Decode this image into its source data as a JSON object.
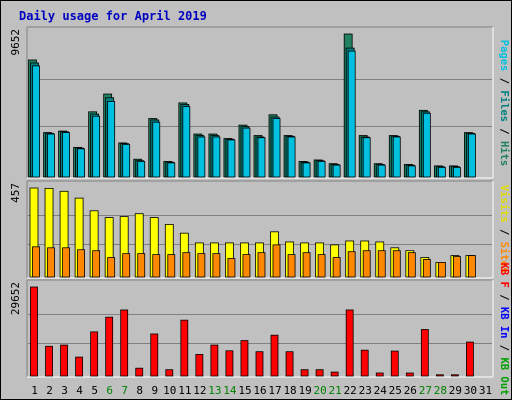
{
  "chart_data": {
    "type": "bar",
    "title": "Daily usage for April 2019",
    "colors": {
      "background": "#c0c0c0",
      "title": "#0000c0",
      "pages": "#00c0e0",
      "files": "#008080",
      "hits": "#208060",
      "visits": "#ffff00",
      "sites": "#ff8800",
      "kb_f": "#ff0000",
      "kb_in": "#0000ff",
      "kb_out": "#00a000",
      "weekend_day": "#008000",
      "weekday": "#000000"
    },
    "days": [
      "1",
      "2",
      "3",
      "4",
      "5",
      "6",
      "7",
      "8",
      "9",
      "10",
      "11",
      "12",
      "13",
      "14",
      "15",
      "16",
      "17",
      "18",
      "19",
      "20",
      "21",
      "22",
      "23",
      "24",
      "25",
      "26",
      "27",
      "28",
      "29",
      "30",
      "31"
    ],
    "weekend_days": [
      "6",
      "7",
      "13",
      "14",
      "20",
      "21",
      "27",
      "28"
    ],
    "top_panel": {
      "ymax_label": "9652",
      "ymax": 9652,
      "legend": [
        "Pages",
        "/",
        "Files",
        "/",
        "Hits"
      ],
      "legend_colors": [
        "#00c0e0",
        "#000000",
        "#008080",
        "#000000",
        "#208060"
      ],
      "series": [
        {
          "name": "Hits",
          "values": [
            7900,
            3000,
            3100,
            2000,
            4400,
            5600,
            2300,
            1200,
            3950,
            1050,
            5000,
            2900,
            2900,
            2600,
            3500,
            2800,
            4200,
            2800,
            1050,
            1150,
            900,
            9652,
            2800,
            900,
            2800,
            850,
            4500,
            750,
            750,
            3000,
            0
          ]
        },
        {
          "name": "Files",
          "values": [
            7700,
            2950,
            3050,
            1950,
            4250,
            5350,
            2250,
            1100,
            3850,
            1000,
            4900,
            2800,
            2800,
            2550,
            3400,
            2700,
            4050,
            2750,
            1000,
            1100,
            850,
            8700,
            2700,
            850,
            2750,
            800,
            4400,
            700,
            700,
            2950,
            0
          ]
        },
        {
          "name": "Pages",
          "values": [
            7500,
            2900,
            3000,
            1900,
            4100,
            5100,
            2200,
            1050,
            3700,
            950,
            4750,
            2700,
            2700,
            2500,
            3300,
            2650,
            3950,
            2700,
            950,
            1050,
            800,
            8500,
            2650,
            800,
            2700,
            750,
            4300,
            650,
            650,
            2900,
            0
          ]
        }
      ]
    },
    "mid_panel": {
      "ymax_label": "457",
      "ymax": 457,
      "legend": [
        "Visits",
        "/",
        "Sites"
      ],
      "legend_colors": [
        "#e0e000",
        "#000000",
        "#ff8800"
      ],
      "series": [
        {
          "name": "Visits",
          "values": [
            457,
            455,
            440,
            405,
            340,
            305,
            310,
            325,
            305,
            270,
            225,
            175,
            175,
            175,
            175,
            175,
            232,
            180,
            175,
            175,
            165,
            185,
            185,
            180,
            150,
            135,
            100,
            75,
            110,
            110,
            0
          ]
        },
        {
          "name": "Sites",
          "values": [
            155,
            150,
            150,
            140,
            135,
            100,
            120,
            120,
            115,
            115,
            125,
            120,
            120,
            95,
            115,
            125,
            165,
            115,
            125,
            115,
            100,
            130,
            135,
            135,
            135,
            125,
            90,
            75,
            105,
            110,
            0
          ]
        }
      ]
    },
    "bot_panel": {
      "ymax_label": "29652",
      "ymax": 29652,
      "legend": [
        "KB F",
        "/",
        "KB In",
        "/",
        "KB Out"
      ],
      "legend_colors": [
        "#ff0000",
        "#000000",
        "#0000ff",
        "#000000",
        "#00a000"
      ],
      "series": [
        {
          "name": "KB F",
          "values": [
            29652,
            9900,
            10300,
            6300,
            14700,
            19600,
            22000,
            2600,
            14000,
            2100,
            18600,
            7200,
            10300,
            8400,
            11800,
            8100,
            13600,
            8100,
            2100,
            2100,
            1300,
            22000,
            8600,
            1000,
            8300,
            1000,
            15500,
            400,
            400,
            11300,
            0
          ]
        }
      ]
    }
  }
}
